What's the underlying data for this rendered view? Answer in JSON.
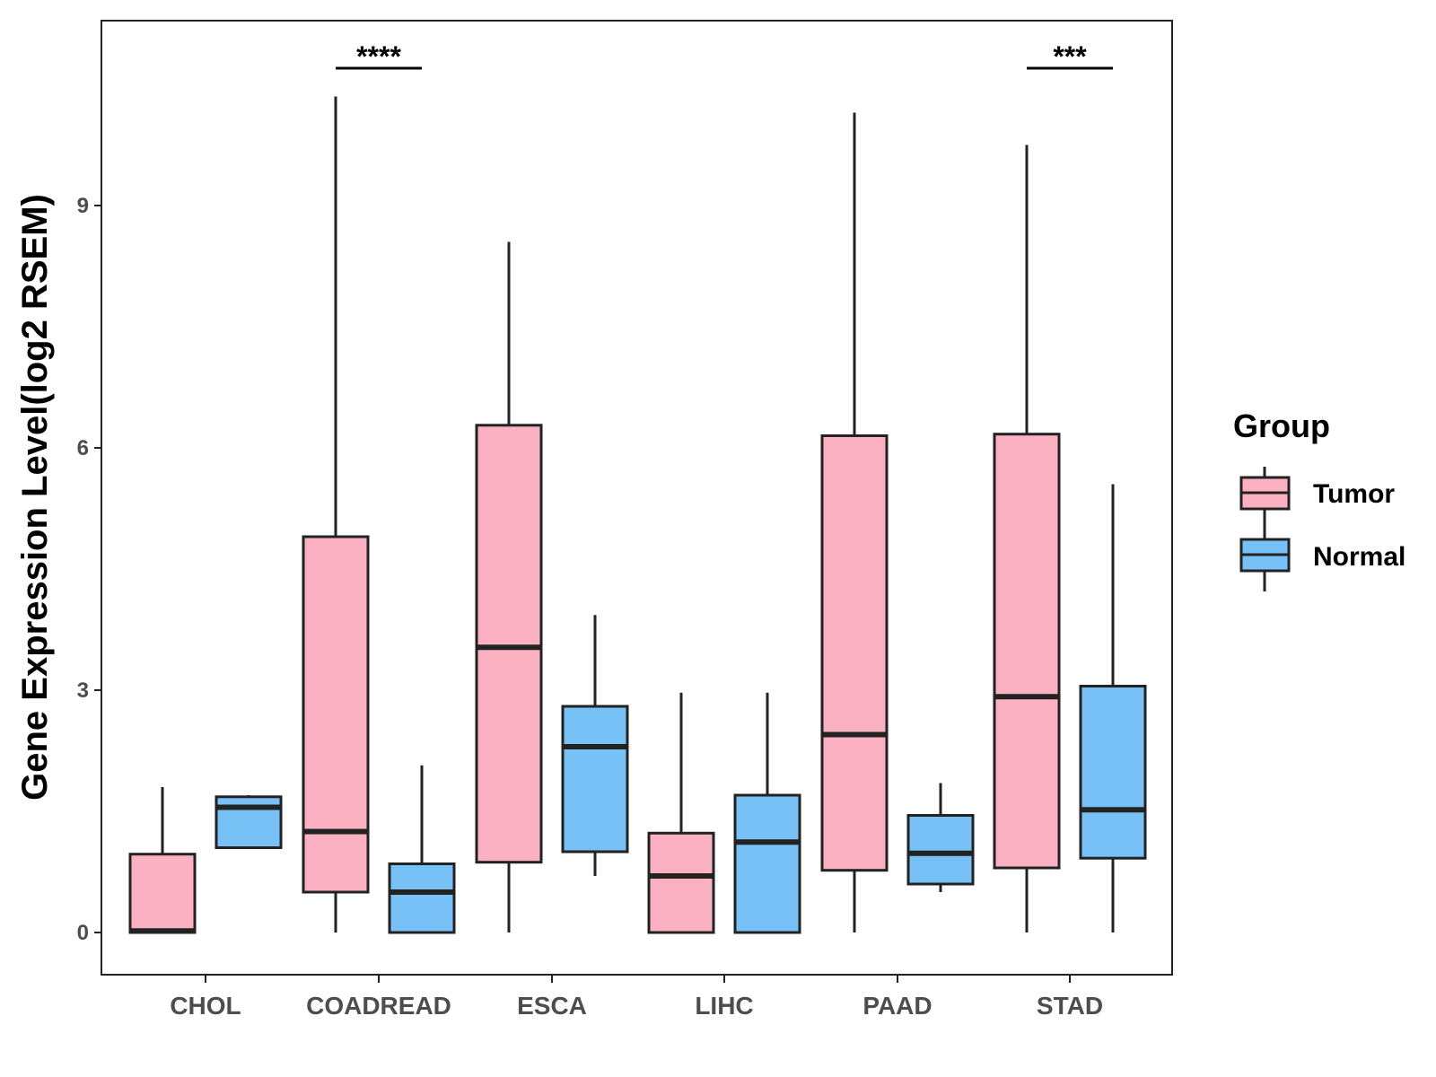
{
  "chart_data": {
    "type": "boxplot",
    "title": "",
    "xlabel": "",
    "ylabel": "Gene Expression Level(log2 RSEM)",
    "ylim": [
      -0.5,
      11.3
    ],
    "yticks": [
      0,
      3,
      6,
      9
    ],
    "ytick_labels": [
      "0",
      "3",
      "6",
      "9"
    ],
    "grid": false,
    "categories": [
      "CHOL",
      "COADREAD",
      "ESCA",
      "LIHC",
      "PAAD",
      "STAD"
    ],
    "legend": {
      "title": "Group",
      "placement": "right",
      "entries": [
        "Tumor",
        "Normal"
      ]
    },
    "colors": {
      "Tumor": "#fbb1c1",
      "Normal": "#77c1f7",
      "stroke": "#222222"
    },
    "series": [
      {
        "name": "Tumor",
        "boxes": [
          {
            "category": "CHOL",
            "whisker_low": 0,
            "q1": 0,
            "median": 0.02,
            "q3": 0.97,
            "whisker_high": 1.8
          },
          {
            "category": "COADREAD",
            "whisker_low": 0,
            "q1": 0.5,
            "median": 1.25,
            "q3": 4.9,
            "whisker_high": 10.35
          },
          {
            "category": "ESCA",
            "whisker_low": 0,
            "q1": 0.87,
            "median": 3.53,
            "q3": 6.28,
            "whisker_high": 8.55
          },
          {
            "category": "LIHC",
            "whisker_low": 0,
            "q1": 0,
            "median": 0.7,
            "q3": 1.23,
            "whisker_high": 2.97
          },
          {
            "category": "PAAD",
            "whisker_low": 0,
            "q1": 0.77,
            "median": 2.45,
            "q3": 6.15,
            "whisker_high": 10.15
          },
          {
            "category": "STAD",
            "whisker_low": 0,
            "q1": 0.8,
            "median": 2.92,
            "q3": 6.17,
            "whisker_high": 9.75
          }
        ]
      },
      {
        "name": "Normal",
        "boxes": [
          {
            "category": "CHOL",
            "whisker_low": 1.05,
            "q1": 1.05,
            "median": 1.55,
            "q3": 1.68,
            "whisker_high": 1.7
          },
          {
            "category": "COADREAD",
            "whisker_low": 0,
            "q1": 0,
            "median": 0.5,
            "q3": 0.85,
            "whisker_high": 2.07
          },
          {
            "category": "ESCA",
            "whisker_low": 0.7,
            "q1": 1.0,
            "median": 2.3,
            "q3": 2.8,
            "whisker_high": 3.93
          },
          {
            "category": "LIHC",
            "whisker_low": 0,
            "q1": 0,
            "median": 1.12,
            "q3": 1.7,
            "whisker_high": 2.97
          },
          {
            "category": "PAAD",
            "whisker_low": 0.5,
            "q1": 0.6,
            "median": 0.98,
            "q3": 1.45,
            "whisker_high": 1.85
          },
          {
            "category": "STAD",
            "whisker_low": 0,
            "q1": 0.92,
            "median": 1.52,
            "q3": 3.05,
            "whisker_high": 5.55
          }
        ]
      }
    ],
    "annotations": [
      {
        "category": "COADREAD",
        "label": "****",
        "y": 10.7
      },
      {
        "category": "STAD",
        "label": "***",
        "y": 10.7
      }
    ]
  }
}
